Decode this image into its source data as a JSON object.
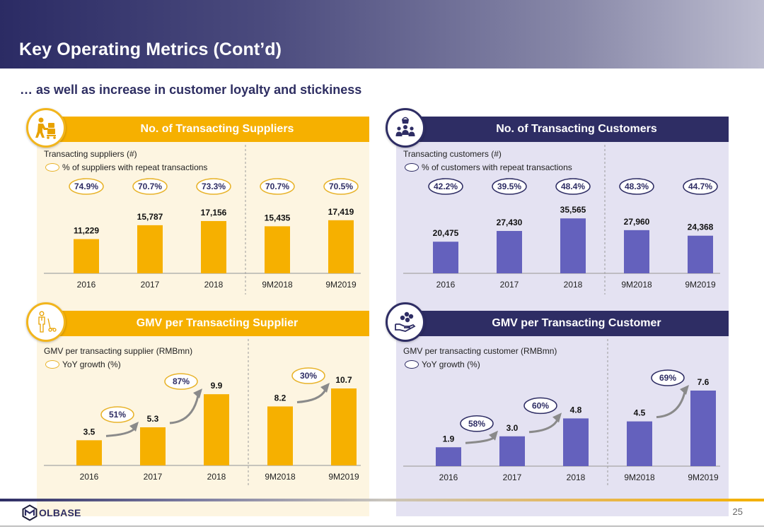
{
  "header": {
    "title": "Key Operating Metrics (Cont’d)",
    "subtitle": "… as well as increase in customer loyalty and stickiness"
  },
  "colors": {
    "gold": "#f6b000",
    "navy": "#2e2d64",
    "purple_bar": "#6461bd",
    "gold_bg": "#fdf5e1",
    "purple_bg": "#e4e2f2",
    "arrow_gray": "#8a8a8a"
  },
  "panels": {
    "suppliers": {
      "title": "No. of Transacting Suppliers",
      "icon": "supplier-trolley-icon",
      "metric_label": "Transacting suppliers (#)",
      "legend_label": "% of suppliers with repeat transactions"
    },
    "customers": {
      "title": "No. of Transacting Customers",
      "icon": "customers-basket-icon",
      "metric_label": "Transacting customers (#)",
      "legend_label": "% of customers with repeat transactions"
    },
    "gmv_supplier": {
      "title": "GMV per Transacting Supplier",
      "icon": "worker-cart-icon",
      "metric_label": "GMV per transacting supplier (RMBmn)",
      "legend_label": "YoY growth (%)"
    },
    "gmv_customer": {
      "title": "GMV per Transacting Customer",
      "icon": "hand-coins-icon",
      "metric_label": "GMV per transacting customer (RMBmn)",
      "legend_label": "YoY growth (%)"
    }
  },
  "chart_data": [
    {
      "id": "suppliers",
      "type": "bar",
      "title": "No. of Transacting Suppliers",
      "ylabel": "Transacting suppliers (#)",
      "categories": [
        "2016",
        "2017",
        "2018",
        "9M2018",
        "9M2019"
      ],
      "values": [
        11229,
        15787,
        17156,
        15435,
        17419
      ],
      "value_labels": [
        "11,229",
        "15,787",
        "17,156",
        "15,435",
        "17,419"
      ],
      "annotations": {
        "name": "% of suppliers with repeat transactions",
        "labels": [
          "74.9%",
          "70.7%",
          "73.3%",
          "70.7%",
          "70.5%"
        ]
      },
      "ylim": [
        0,
        19000
      ],
      "grid": false,
      "divider_after_index": 2
    },
    {
      "id": "customers",
      "type": "bar",
      "title": "No. of Transacting Customers",
      "ylabel": "Transacting customers (#)",
      "categories": [
        "2016",
        "2017",
        "2018",
        "9M2018",
        "9M2019"
      ],
      "values": [
        20475,
        27430,
        35565,
        27960,
        24368
      ],
      "value_labels": [
        "20,475",
        "27,430",
        "35,565",
        "27,960",
        "24,368"
      ],
      "annotations": {
        "name": "% of customers with repeat transactions",
        "labels": [
          "42.2%",
          "39.5%",
          "48.4%",
          "48.3%",
          "44.7%"
        ]
      },
      "ylim": [
        0,
        37500
      ],
      "grid": false,
      "divider_after_index": 2
    },
    {
      "id": "gmv_supplier",
      "type": "bar",
      "title": "GMV per Transacting Supplier",
      "ylabel": "GMV per transacting supplier (RMBmn)",
      "categories": [
        "2016",
        "2017",
        "2018",
        "9M2018",
        "9M2019"
      ],
      "values": [
        3.5,
        5.3,
        9.9,
        8.2,
        10.7
      ],
      "value_labels": [
        "3.5",
        "5.3",
        "9.9",
        "8.2",
        "10.7"
      ],
      "growth": {
        "name": "YoY growth (%)",
        "items": [
          {
            "from": 0,
            "to": 1,
            "label": "51%"
          },
          {
            "from": 1,
            "to": 2,
            "label": "87%"
          },
          {
            "from": 3,
            "to": 4,
            "label": "30%"
          }
        ]
      },
      "ylim": [
        0,
        10.7
      ],
      "grid": false,
      "divider_after_index": 2
    },
    {
      "id": "gmv_customer",
      "type": "bar",
      "title": "GMV per Transacting Customer",
      "ylabel": "GMV per transacting customer (RMBmn)",
      "categories": [
        "2016",
        "2017",
        "2018",
        "9M2018",
        "9M2019"
      ],
      "values": [
        1.9,
        3.0,
        4.8,
        4.5,
        7.6
      ],
      "value_labels": [
        "1.9",
        "3.0",
        "4.8",
        "4.5",
        "7.6"
      ],
      "growth": {
        "name": "YoY growth (%)",
        "items": [
          {
            "from": 0,
            "to": 1,
            "label": "58%"
          },
          {
            "from": 1,
            "to": 2,
            "label": "60%"
          },
          {
            "from": 3,
            "to": 4,
            "label": "69%"
          }
        ]
      },
      "ylim": [
        0,
        7.6
      ],
      "grid": false,
      "divider_after_index": 2
    }
  ],
  "footer": {
    "logo_text": "OLBASE",
    "page_number": "25"
  }
}
